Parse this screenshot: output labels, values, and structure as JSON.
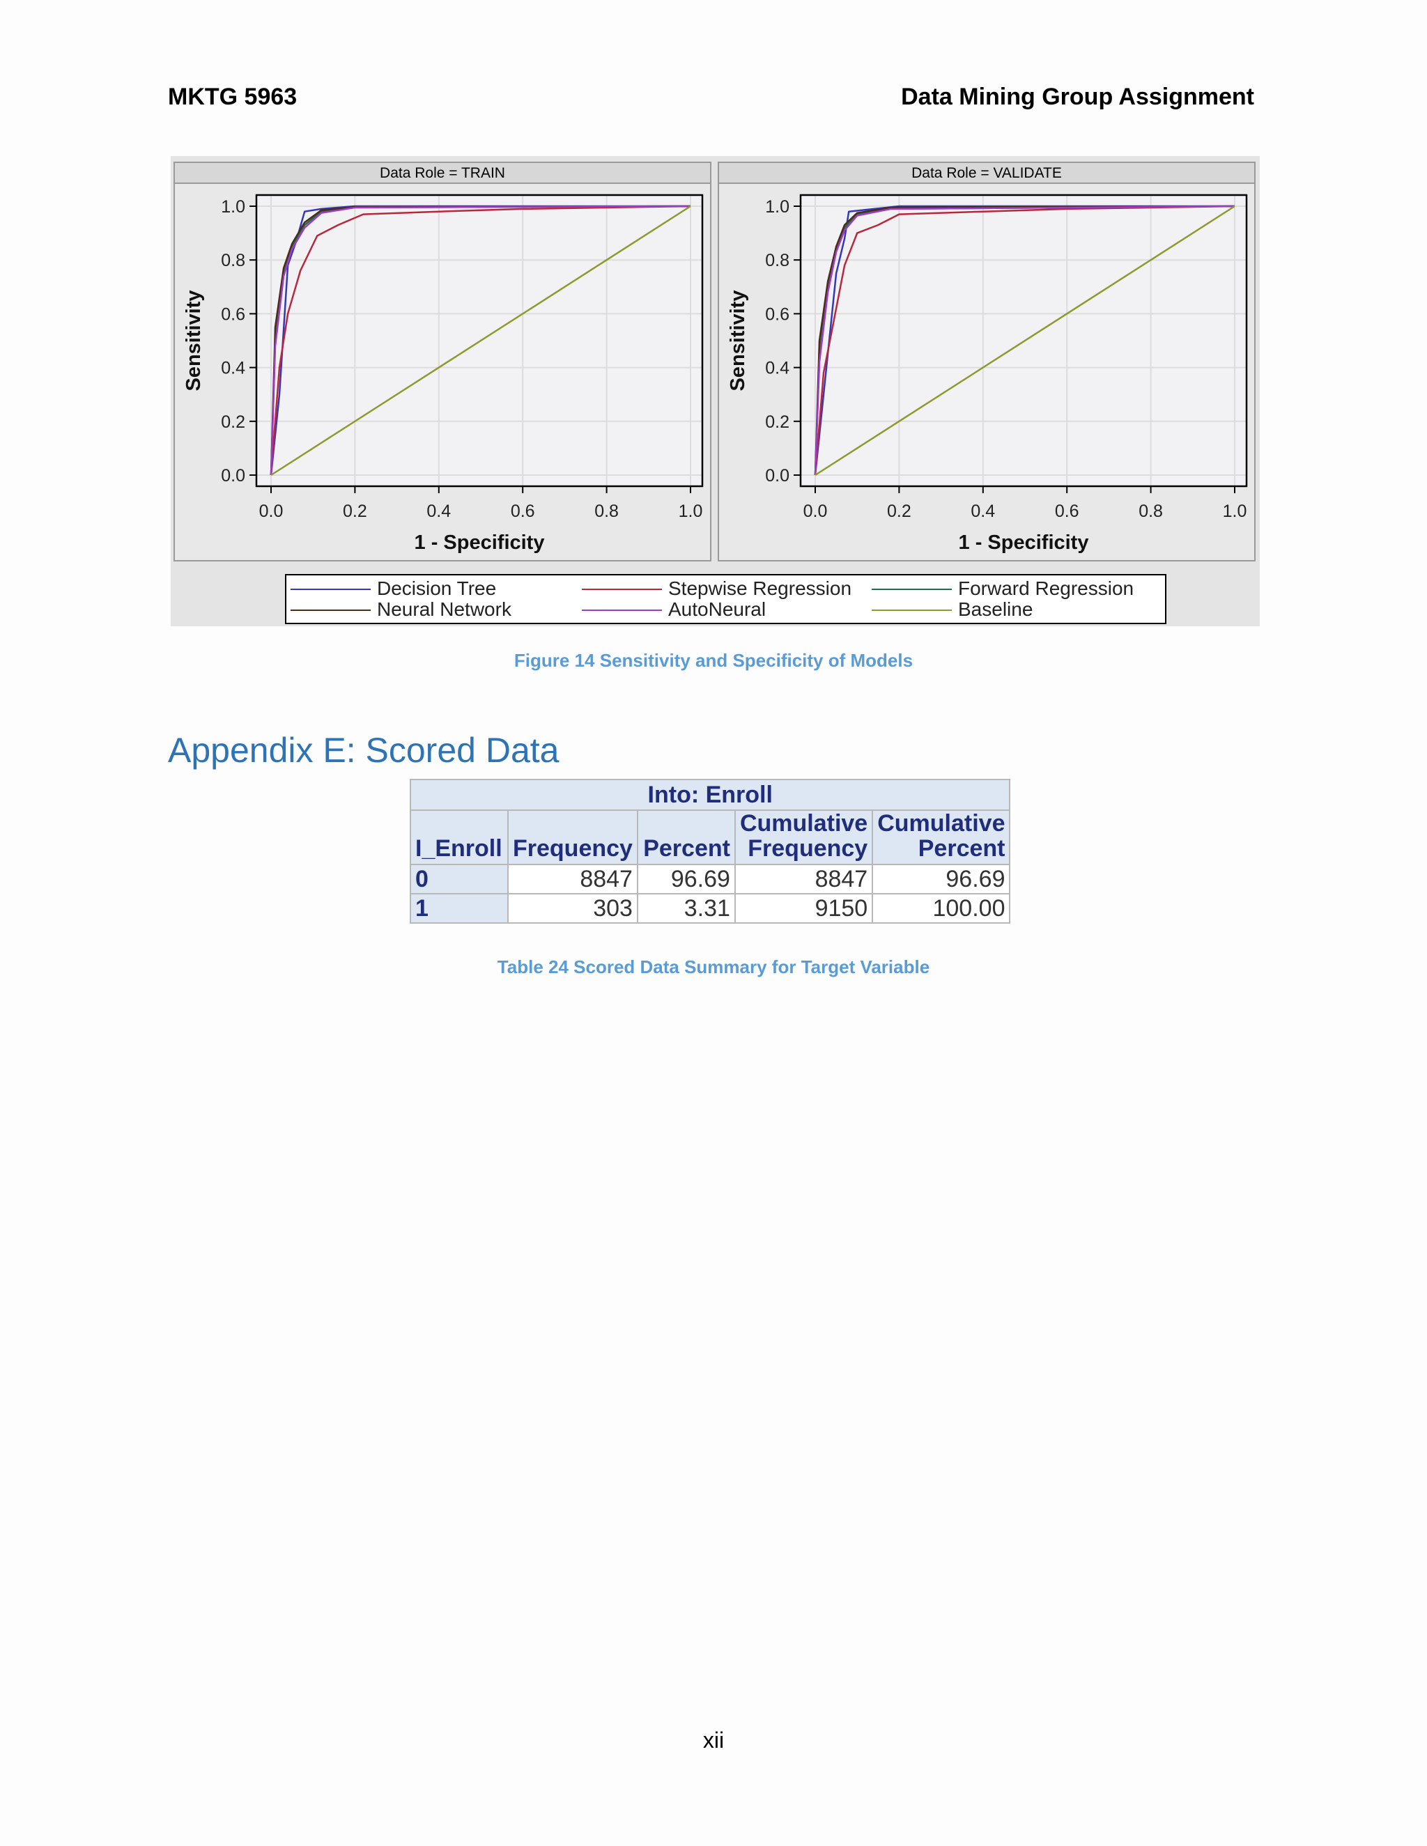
{
  "header": {
    "left": "MKTG 5963",
    "right": "Data Mining Group Assignment"
  },
  "figure": {
    "caption": "Figure 14 Sensitivity and Specificity of Models",
    "legend": [
      {
        "label": "Decision Tree",
        "color": "#3636b8"
      },
      {
        "label": "Stepwise Regression",
        "color": "#b8283c"
      },
      {
        "label": "Forward Regression",
        "color": "#1f6b52"
      },
      {
        "label": "Neural Network",
        "color": "#4a2d12"
      },
      {
        "label": "AutoNeural",
        "color": "#9d3cc4"
      },
      {
        "label": "Baseline",
        "color": "#8c9a2e"
      }
    ]
  },
  "chart_data": [
    {
      "type": "line",
      "title": "Data Role = TRAIN",
      "xlabel": "1 - Specificity",
      "ylabel": "Sensitivity",
      "xlim": [
        0,
        1
      ],
      "ylim": [
        0,
        1
      ],
      "xticks": [
        "0.0",
        "0.2",
        "0.4",
        "0.6",
        "0.8",
        "1.0"
      ],
      "yticks": [
        "0.0",
        "0.2",
        "0.4",
        "0.6",
        "0.8",
        "1.0"
      ],
      "grid": true,
      "series": [
        {
          "name": "Decision Tree",
          "color": "#3636b8",
          "points": [
            [
              0,
              0
            ],
            [
              0.02,
              0.3
            ],
            [
              0.04,
              0.78
            ],
            [
              0.06,
              0.87
            ],
            [
              0.08,
              0.98
            ],
            [
              0.12,
              0.99
            ],
            [
              0.2,
              1.0
            ],
            [
              1,
              1
            ]
          ]
        },
        {
          "name": "Stepwise Regression",
          "color": "#b8283c",
          "points": [
            [
              0,
              0
            ],
            [
              0.02,
              0.4
            ],
            [
              0.04,
              0.6
            ],
            [
              0.07,
              0.76
            ],
            [
              0.11,
              0.89
            ],
            [
              0.16,
              0.93
            ],
            [
              0.22,
              0.97
            ],
            [
              0.4,
              0.98
            ],
            [
              0.6,
              0.99
            ],
            [
              1,
              1
            ]
          ]
        },
        {
          "name": "Forward Regression",
          "color": "#1f6b52",
          "points": [
            [
              0,
              0
            ],
            [
              0.01,
              0.5
            ],
            [
              0.03,
              0.75
            ],
            [
              0.05,
              0.85
            ],
            [
              0.08,
              0.93
            ],
            [
              0.12,
              0.98
            ],
            [
              0.2,
              0.995
            ],
            [
              1,
              1
            ]
          ]
        },
        {
          "name": "Neural Network",
          "color": "#4a2d12",
          "points": [
            [
              0,
              0
            ],
            [
              0.01,
              0.55
            ],
            [
              0.03,
              0.77
            ],
            [
              0.05,
              0.86
            ],
            [
              0.08,
              0.94
            ],
            [
              0.12,
              0.985
            ],
            [
              0.2,
              0.997
            ],
            [
              1,
              1
            ]
          ]
        },
        {
          "name": "AutoNeural",
          "color": "#9d3cc4",
          "points": [
            [
              0,
              0
            ],
            [
              0.01,
              0.48
            ],
            [
              0.03,
              0.74
            ],
            [
              0.05,
              0.84
            ],
            [
              0.08,
              0.92
            ],
            [
              0.12,
              0.975
            ],
            [
              0.2,
              0.995
            ],
            [
              1,
              1
            ]
          ]
        },
        {
          "name": "Baseline",
          "color": "#8c9a2e",
          "points": [
            [
              0,
              0
            ],
            [
              1,
              1
            ]
          ]
        }
      ]
    },
    {
      "type": "line",
      "title": "Data Role = VALIDATE",
      "xlabel": "1 - Specificity",
      "ylabel": "Sensitivity",
      "xlim": [
        0,
        1
      ],
      "ylim": [
        0,
        1
      ],
      "xticks": [
        "0.0",
        "0.2",
        "0.4",
        "0.6",
        "0.8",
        "1.0"
      ],
      "yticks": [
        "0.0",
        "0.2",
        "0.4",
        "0.6",
        "0.8",
        "1.0"
      ],
      "grid": true,
      "series": [
        {
          "name": "Decision Tree",
          "color": "#3636b8",
          "points": [
            [
              0,
              0
            ],
            [
              0.02,
              0.3
            ],
            [
              0.05,
              0.75
            ],
            [
              0.07,
              0.88
            ],
            [
              0.08,
              0.98
            ],
            [
              0.14,
              0.99
            ],
            [
              0.2,
              1.0
            ],
            [
              1,
              1
            ]
          ]
        },
        {
          "name": "Stepwise Regression",
          "color": "#b8283c",
          "points": [
            [
              0,
              0
            ],
            [
              0.02,
              0.38
            ],
            [
              0.05,
              0.62
            ],
            [
              0.07,
              0.78
            ],
            [
              0.1,
              0.9
            ],
            [
              0.15,
              0.93
            ],
            [
              0.2,
              0.97
            ],
            [
              0.4,
              0.98
            ],
            [
              0.6,
              0.99
            ],
            [
              1,
              1
            ]
          ]
        },
        {
          "name": "Forward Regression",
          "color": "#1f6b52",
          "points": [
            [
              0,
              0
            ],
            [
              0.01,
              0.45
            ],
            [
              0.03,
              0.7
            ],
            [
              0.05,
              0.84
            ],
            [
              0.07,
              0.92
            ],
            [
              0.1,
              0.97
            ],
            [
              0.18,
              0.99
            ],
            [
              1,
              1
            ]
          ]
        },
        {
          "name": "Neural Network",
          "color": "#4a2d12",
          "points": [
            [
              0,
              0
            ],
            [
              0.01,
              0.5
            ],
            [
              0.03,
              0.72
            ],
            [
              0.05,
              0.85
            ],
            [
              0.07,
              0.93
            ],
            [
              0.1,
              0.975
            ],
            [
              0.18,
              0.995
            ],
            [
              1,
              1
            ]
          ]
        },
        {
          "name": "AutoNeural",
          "color": "#9d3cc4",
          "points": [
            [
              0,
              0
            ],
            [
              0.01,
              0.42
            ],
            [
              0.03,
              0.68
            ],
            [
              0.05,
              0.83
            ],
            [
              0.07,
              0.91
            ],
            [
              0.1,
              0.965
            ],
            [
              0.18,
              0.99
            ],
            [
              1,
              1
            ]
          ]
        },
        {
          "name": "Baseline",
          "color": "#8c9a2e",
          "points": [
            [
              0,
              0
            ],
            [
              1,
              1
            ]
          ]
        }
      ]
    }
  ],
  "appendix": {
    "heading": "Appendix E: Scored Data",
    "table": {
      "title": "Into: Enroll",
      "headers": [
        [
          "",
          "I_Enroll"
        ],
        [
          "",
          "Frequency"
        ],
        [
          "",
          "Percent"
        ],
        [
          "Cumulative",
          "Frequency"
        ],
        [
          "Cumulative",
          "Percent"
        ]
      ],
      "rows": [
        [
          "0",
          "8847",
          "96.69",
          "8847",
          "96.69"
        ],
        [
          "1",
          "303",
          "3.31",
          "9150",
          "100.00"
        ]
      ]
    },
    "caption": "Table 24 Scored Data Summary for Target Variable"
  },
  "page_number": "xii"
}
